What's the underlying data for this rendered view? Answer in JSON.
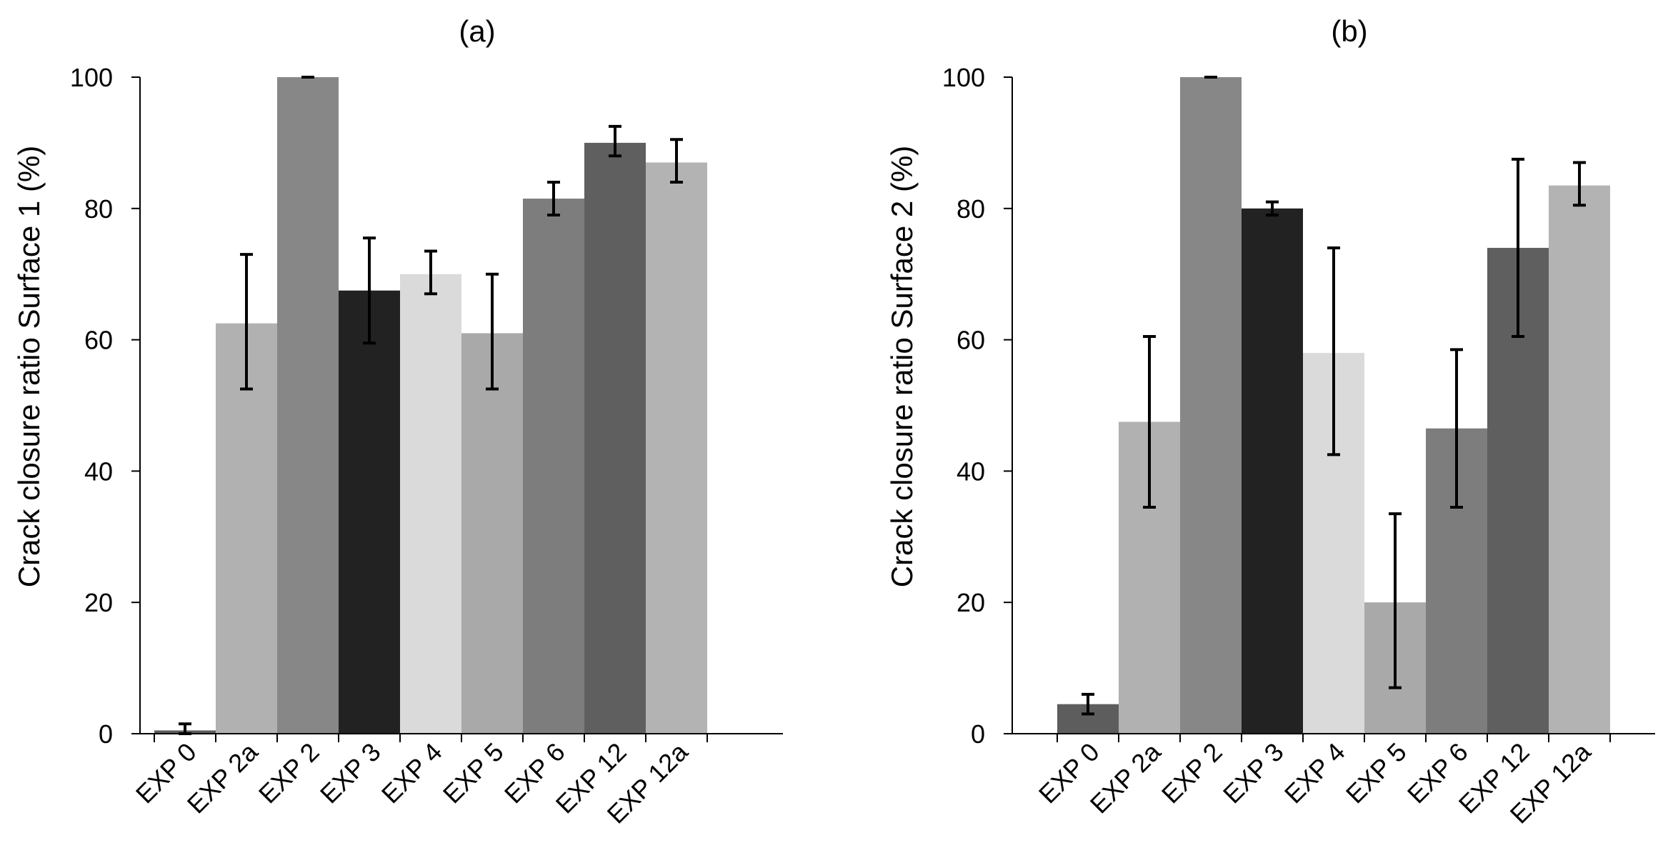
{
  "chart_data": [
    {
      "type": "bar",
      "title": "(a)",
      "xlabel": "",
      "ylabel": "Crack closure ratio Surface 1 (%)",
      "ylim": [
        0,
        100
      ],
      "yticks": [
        0,
        20,
        40,
        60,
        80,
        100
      ],
      "grid": false,
      "categories": [
        "EXP 0",
        "EXP 2a",
        "EXP 2",
        "EXP 3",
        "EXP 4",
        "EXP 5",
        "EXP 6",
        "EXP 12",
        "EXP 12a"
      ],
      "values": [
        0.5,
        62.5,
        100,
        67.5,
        70,
        61,
        81.5,
        90,
        87
      ],
      "error_low": [
        0,
        52.5,
        100,
        59.5,
        67,
        52.5,
        79,
        88,
        84
      ],
      "error_high": [
        1.5,
        73,
        100,
        75.5,
        73.5,
        70,
        84,
        92.5,
        90.5
      ],
      "colors": [
        "#5d5d5d",
        "#b1b1b1",
        "#878787",
        "#222222",
        "#dadada",
        "#a9a9a9",
        "#7d7d7d",
        "#5f5f5f",
        "#b3b3b3"
      ]
    },
    {
      "type": "bar",
      "title": "(b)",
      "xlabel": "",
      "ylabel": "Crack closure ratio Surface 2 (%)",
      "ylim": [
        0,
        100
      ],
      "yticks": [
        0,
        20,
        40,
        60,
        80,
        100
      ],
      "grid": false,
      "categories": [
        "EXP 0",
        "EXP 2a",
        "EXP 2",
        "EXP 3",
        "EXP 4",
        "EXP 5",
        "EXP 6",
        "EXP 12",
        "EXP 12a"
      ],
      "values": [
        4.5,
        47.5,
        100,
        80,
        58,
        20,
        46.5,
        74,
        83.5
      ],
      "error_low": [
        3,
        34.5,
        100,
        79,
        42.5,
        7,
        34.5,
        60.5,
        80.5
      ],
      "error_high": [
        6,
        60.5,
        100,
        81,
        74,
        33.5,
        58.5,
        87.5,
        87
      ],
      "colors": [
        "#5d5d5d",
        "#b1b1b1",
        "#878787",
        "#222222",
        "#dadada",
        "#a9a9a9",
        "#7d7d7d",
        "#5f5f5f",
        "#b3b3b3"
      ]
    }
  ]
}
